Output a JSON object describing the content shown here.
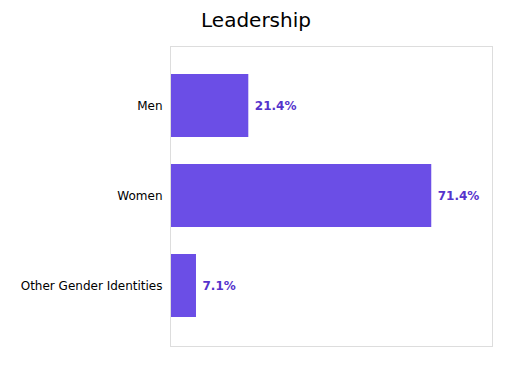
{
  "chart_data": {
    "type": "bar",
    "title": "Leadership",
    "orientation": "horizontal",
    "categories": [
      "Men",
      "Women",
      "Other Gender Identities"
    ],
    "values": [
      21.4,
      71.4,
      7.1
    ],
    "value_labels": [
      "21.4%",
      "71.4%",
      "7.1%"
    ],
    "color": "#6B4EE6",
    "xlim": [
      0,
      88
    ],
    "xticks": [],
    "data_labels": true,
    "tick_labels": "y",
    "grid": false
  }
}
